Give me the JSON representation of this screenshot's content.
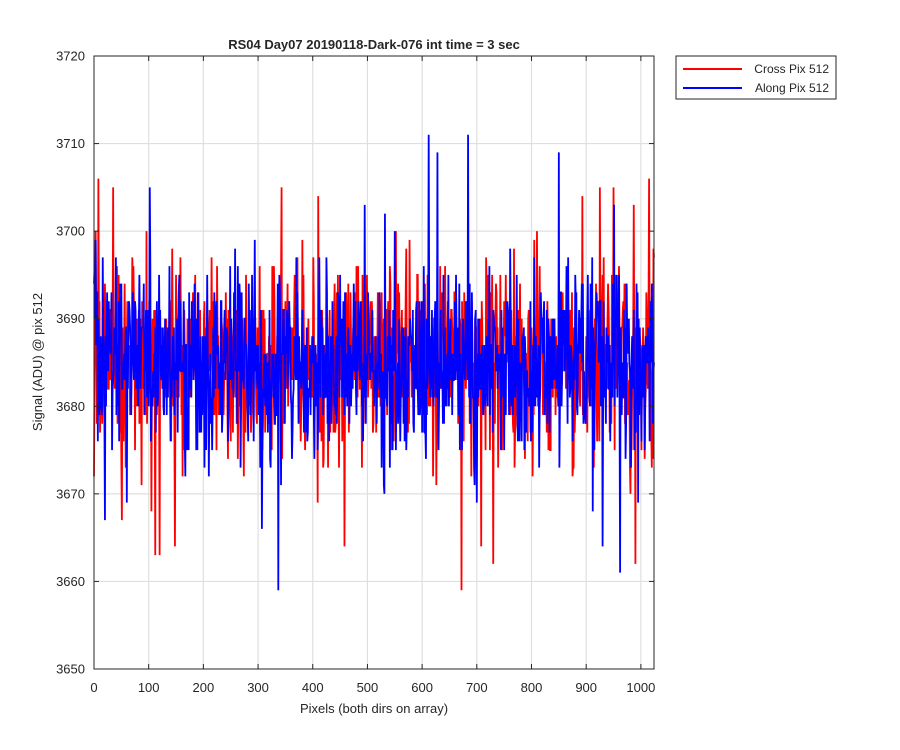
{
  "chart_data": {
    "type": "line",
    "title": "RS04 Day07 20190118-Dark-076 int time = 3 sec",
    "xlabel": "Pixels (both dirs on array)",
    "ylabel": "Signal (ADU) @ pix 512",
    "xlim": [
      0,
      1024
    ],
    "ylim": [
      3650,
      3720
    ],
    "xticks": [
      "0",
      "100",
      "200",
      "300",
      "400",
      "500",
      "600",
      "700",
      "800",
      "900",
      "1000"
    ],
    "yticks": [
      "3650",
      "3660",
      "3670",
      "3680",
      "3690",
      "3700",
      "3710",
      "3720"
    ],
    "grid": true,
    "legend_position": "outside top-right",
    "series": [
      {
        "name": "Cross Pix 512",
        "color": "#ff0000",
        "mean": 3685,
        "points_per_pixel": 1,
        "extremes": [
          {
            "x": 8,
            "y": 3706
          },
          {
            "x": 35,
            "y": 3705
          },
          {
            "x": 112,
            "y": 3663
          },
          {
            "x": 120,
            "y": 3663
          },
          {
            "x": 148,
            "y": 3664
          },
          {
            "x": 343,
            "y": 3705
          },
          {
            "x": 410,
            "y": 3704
          },
          {
            "x": 458,
            "y": 3664
          },
          {
            "x": 672,
            "y": 3659
          },
          {
            "x": 708,
            "y": 3664
          },
          {
            "x": 730,
            "y": 3662
          },
          {
            "x": 925,
            "y": 3705
          },
          {
            "x": 950,
            "y": 3705
          },
          {
            "x": 990,
            "y": 3662
          },
          {
            "x": 1015,
            "y": 3706
          }
        ]
      },
      {
        "name": "Along Pix 512",
        "color": "#0000ff",
        "mean": 3685,
        "points_per_pixel": 1,
        "extremes": [
          {
            "x": 20,
            "y": 3667
          },
          {
            "x": 102,
            "y": 3705
          },
          {
            "x": 337,
            "y": 3659
          },
          {
            "x": 307,
            "y": 3666
          },
          {
            "x": 612,
            "y": 3711
          },
          {
            "x": 628,
            "y": 3709
          },
          {
            "x": 684,
            "y": 3711
          },
          {
            "x": 850,
            "y": 3709
          },
          {
            "x": 930,
            "y": 3664
          },
          {
            "x": 962,
            "y": 3661
          },
          {
            "x": 995,
            "y": 3669
          }
        ]
      }
    ]
  }
}
